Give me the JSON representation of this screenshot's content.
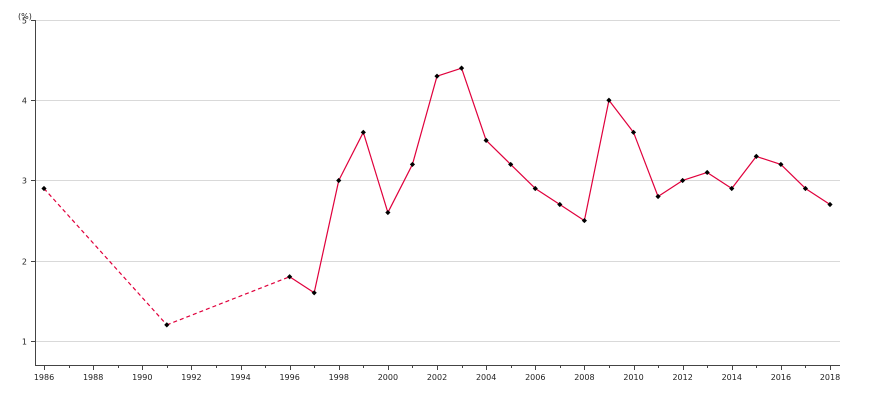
{
  "chart_data": {
    "type": "line",
    "title": "",
    "xlabel": "",
    "ylabel": "",
    "unit_label": "(%)",
    "xlim": [
      1986,
      2018
    ],
    "ylim": [
      0.7,
      5
    ],
    "y_ticks": [
      1,
      2,
      3,
      4,
      5
    ],
    "x_tick_labels": [
      "1986",
      "1988",
      "1990",
      "1992",
      "1994",
      "1996",
      "1998",
      "2000",
      "2002",
      "2004",
      "2006",
      "2008",
      "2010",
      "2012",
      "2014",
      "2016",
      "2018"
    ],
    "grid": "horizontal",
    "line_color": "#e0003c",
    "marker_color": "#000000",
    "series": [
      {
        "x": [
          1986,
          1991,
          1996,
          1997,
          1998,
          1999,
          2000,
          2001,
          2002,
          2003,
          2004,
          2005,
          2006,
          2007,
          2008,
          2009,
          2010,
          2011,
          2012,
          2013,
          2014,
          2015,
          2016,
          2017,
          2018
        ],
        "values": [
          2.9,
          1.2,
          1.8,
          1.6,
          3.0,
          3.6,
          2.6,
          3.2,
          4.3,
          4.4,
          3.5,
          3.2,
          2.9,
          2.7,
          2.5,
          4.0,
          3.6,
          2.8,
          3.0,
          3.1,
          2.9,
          3.3,
          3.2,
          2.9,
          2.7
        ],
        "dashed_until_x": 1996
      }
    ]
  }
}
